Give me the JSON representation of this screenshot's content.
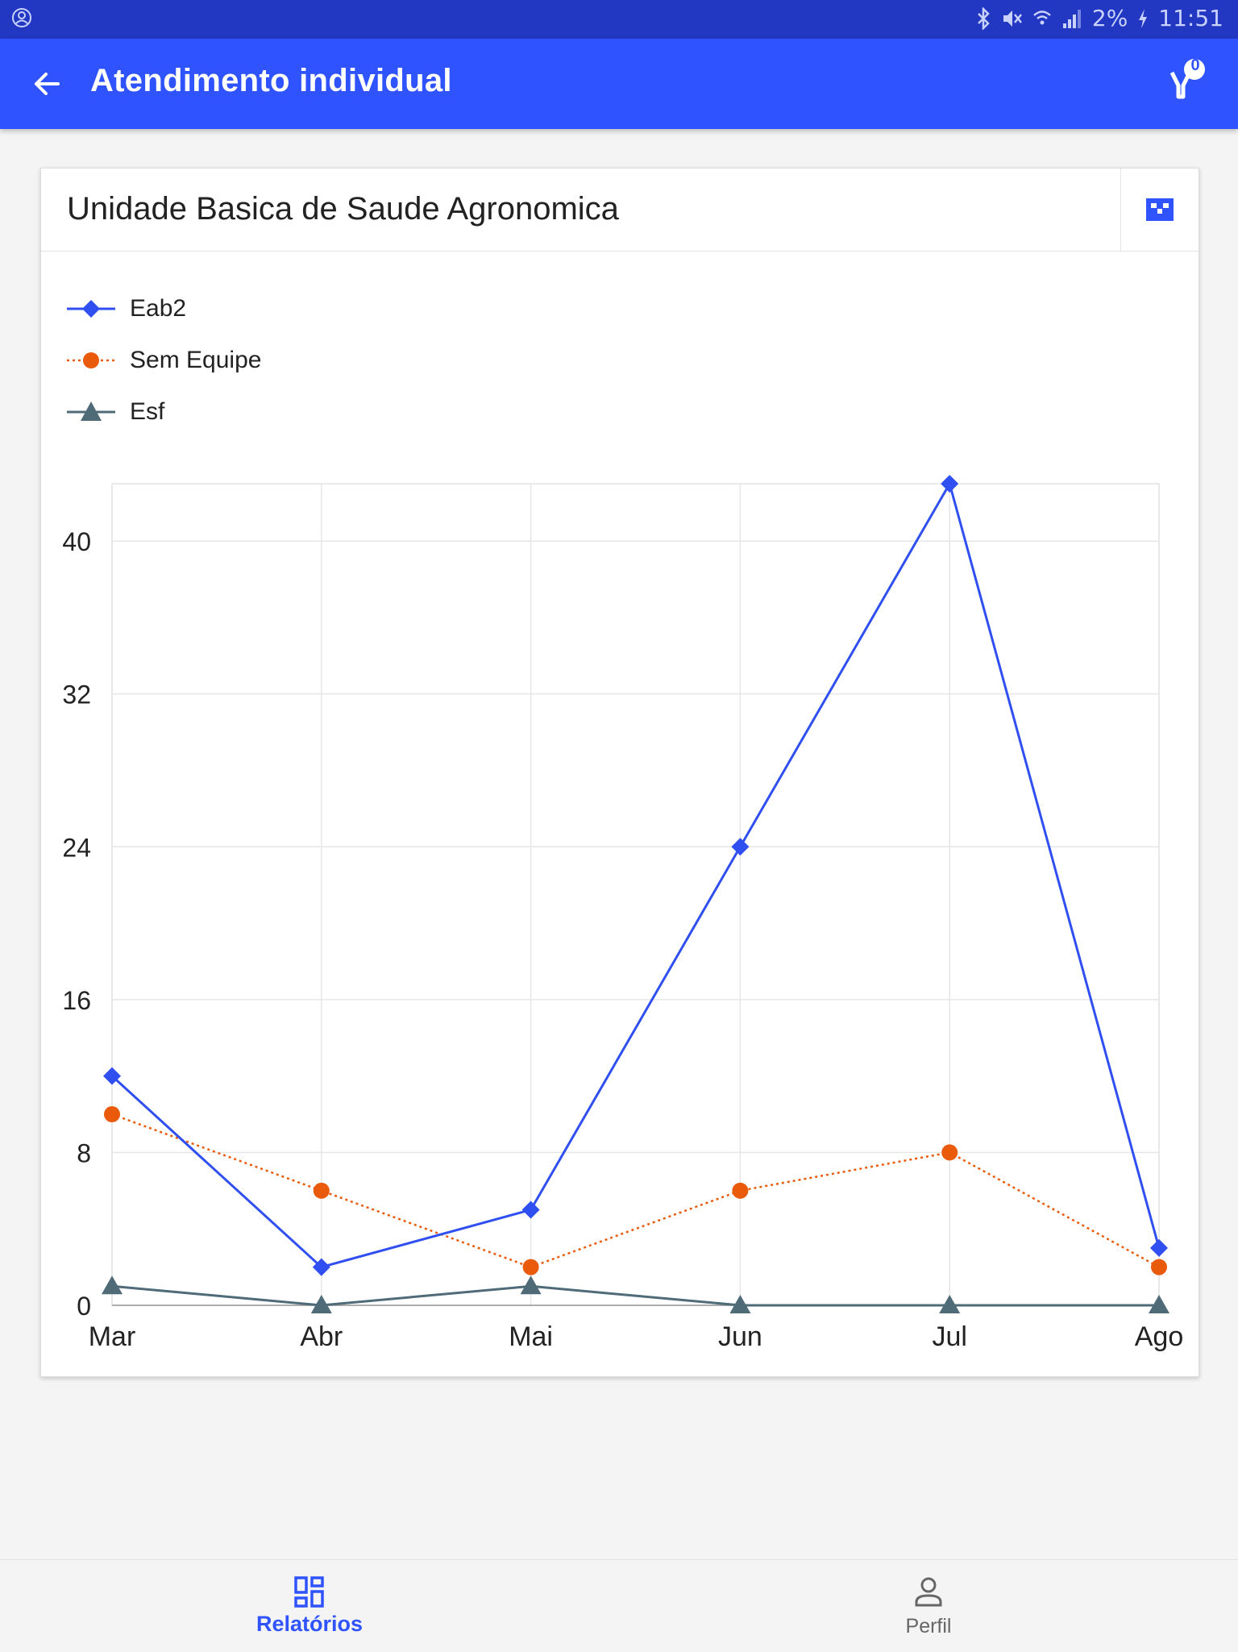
{
  "status_bar": {
    "battery": "2%",
    "time": "11:51",
    "icons": [
      "account-circle-icon",
      "bluetooth-icon",
      "mute-icon",
      "wifi-icon",
      "signal-icon",
      "battery-charging-icon"
    ]
  },
  "app_bar": {
    "title": "Atendimento individual",
    "filter_count": "0",
    "icons": [
      "arrow-back-icon",
      "filter-icon"
    ]
  },
  "card": {
    "title": "Unidade Basica de Saude Agronomica",
    "action_icon": "table-view-icon"
  },
  "chart_data": {
    "type": "line",
    "categories": [
      "Mar",
      "Abr",
      "Mai",
      "Jun",
      "Jul",
      "Ago"
    ],
    "yticks": [
      0,
      8,
      16,
      24,
      32,
      40
    ],
    "ylim": [
      0,
      43
    ],
    "grid": true,
    "legend_position": "top-left",
    "series": [
      {
        "name": "Eab2",
        "values": [
          12,
          2,
          5,
          24,
          43,
          3
        ],
        "color": "#2f4ff0",
        "marker": "diamond",
        "line": "solid"
      },
      {
        "name": "Sem Equipe",
        "values": [
          10,
          6,
          2,
          6,
          8,
          2
        ],
        "color": "#ea5a0b",
        "marker": "circle",
        "line": "dotted"
      },
      {
        "name": "Esf",
        "values": [
          1,
          0,
          1,
          0,
          0,
          0
        ],
        "color": "#4f6b77",
        "marker": "triangle",
        "line": "solid"
      }
    ]
  },
  "bottom_nav": {
    "items": [
      {
        "label": "Relatórios",
        "icon": "dashboard-icon",
        "active": true
      },
      {
        "label": "Perfil",
        "icon": "person-icon",
        "active": false
      }
    ]
  }
}
